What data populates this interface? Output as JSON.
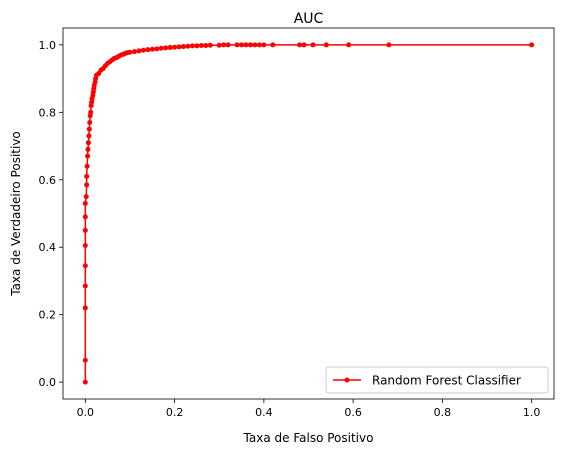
{
  "chart_data": {
    "type": "line",
    "title": "AUC",
    "xlabel": "Taxa de Falso Positivo",
    "ylabel": "Taxa de Verdadeiro Positivo",
    "xlim": [
      -0.05,
      1.05
    ],
    "ylim": [
      -0.05,
      1.05
    ],
    "xticks": [
      "0.0",
      "0.2",
      "0.4",
      "0.6",
      "0.8",
      "1.0"
    ],
    "yticks": [
      "0.0",
      "0.2",
      "0.4",
      "0.6",
      "0.8",
      "1.0"
    ],
    "grid": false,
    "legend_position": "lower-right",
    "series": [
      {
        "name": "Random Forest Classifier",
        "color": "#ff0000",
        "marker": "circle",
        "points": [
          [
            0.0,
            0.0
          ],
          [
            0.0,
            0.065
          ],
          [
            0.0,
            0.22
          ],
          [
            0.0,
            0.285
          ],
          [
            0.0,
            0.345
          ],
          [
            0.0,
            0.405
          ],
          [
            0.0,
            0.45
          ],
          [
            0.0,
            0.49
          ],
          [
            0.0,
            0.53
          ],
          [
            0.002,
            0.55
          ],
          [
            0.003,
            0.585
          ],
          [
            0.003,
            0.61
          ],
          [
            0.004,
            0.64
          ],
          [
            0.005,
            0.67
          ],
          [
            0.006,
            0.69
          ],
          [
            0.007,
            0.71
          ],
          [
            0.008,
            0.73
          ],
          [
            0.009,
            0.75
          ],
          [
            0.01,
            0.77
          ],
          [
            0.011,
            0.79
          ],
          [
            0.012,
            0.8
          ],
          [
            0.013,
            0.82
          ],
          [
            0.014,
            0.83
          ],
          [
            0.015,
            0.84
          ],
          [
            0.017,
            0.85
          ],
          [
            0.018,
            0.86
          ],
          [
            0.019,
            0.87
          ],
          [
            0.02,
            0.88
          ],
          [
            0.022,
            0.89
          ],
          [
            0.023,
            0.9
          ],
          [
            0.025,
            0.91
          ],
          [
            0.03,
            0.915
          ],
          [
            0.035,
            0.925
          ],
          [
            0.04,
            0.93
          ],
          [
            0.045,
            0.938
          ],
          [
            0.05,
            0.945
          ],
          [
            0.055,
            0.95
          ],
          [
            0.06,
            0.955
          ],
          [
            0.065,
            0.96
          ],
          [
            0.07,
            0.962
          ],
          [
            0.075,
            0.966
          ],
          [
            0.08,
            0.97
          ],
          [
            0.085,
            0.972
          ],
          [
            0.09,
            0.975
          ],
          [
            0.095,
            0.977
          ],
          [
            0.1,
            0.978
          ],
          [
            0.11,
            0.98
          ],
          [
            0.12,
            0.982
          ],
          [
            0.13,
            0.984
          ],
          [
            0.14,
            0.986
          ],
          [
            0.15,
            0.987
          ],
          [
            0.16,
            0.988
          ],
          [
            0.17,
            0.99
          ],
          [
            0.18,
            0.991
          ],
          [
            0.19,
            0.992
          ],
          [
            0.2,
            0.993
          ],
          [
            0.21,
            0.994
          ],
          [
            0.22,
            0.995
          ],
          [
            0.23,
            0.996
          ],
          [
            0.24,
            0.997
          ],
          [
            0.25,
            0.997
          ],
          [
            0.26,
            0.998
          ],
          [
            0.27,
            0.998
          ],
          [
            0.28,
            0.999
          ],
          [
            0.3,
            0.999
          ],
          [
            0.31,
            1.0
          ],
          [
            0.32,
            1.0
          ],
          [
            0.34,
            1.0
          ],
          [
            0.35,
            1.0
          ],
          [
            0.36,
            1.0
          ],
          [
            0.37,
            1.0
          ],
          [
            0.38,
            1.0
          ],
          [
            0.39,
            1.0
          ],
          [
            0.4,
            1.0
          ],
          [
            0.42,
            1.0
          ],
          [
            0.48,
            1.0
          ],
          [
            0.49,
            1.0
          ],
          [
            0.51,
            1.0
          ],
          [
            0.54,
            1.0
          ],
          [
            0.59,
            1.0
          ],
          [
            0.68,
            1.0
          ],
          [
            1.0,
            1.0
          ]
        ]
      }
    ]
  }
}
